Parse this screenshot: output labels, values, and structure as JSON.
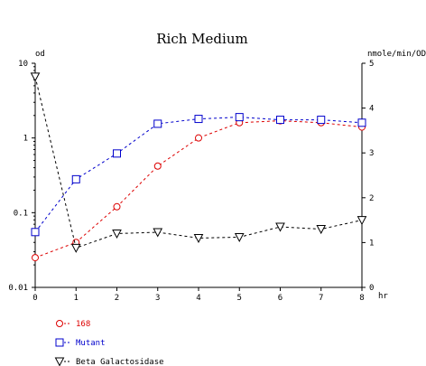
{
  "chart_data": {
    "type": "line",
    "title": "Rich Medium",
    "xlabel": "hr",
    "ylabel_left": "od",
    "ylabel_right": "nmole/min/OD",
    "x": [
      0,
      1,
      2,
      3,
      4,
      5,
      6,
      7,
      8
    ],
    "xlim": [
      0,
      8
    ],
    "x_ticks": [
      "0",
      "1",
      "2",
      "3",
      "4",
      "5",
      "6",
      "7",
      "8"
    ],
    "y_left_scale": "log",
    "y_left_lim": [
      0.01,
      10
    ],
    "y_left_ticks": [
      {
        "value": 10,
        "label": "10"
      },
      {
        "value": 1,
        "label": "1"
      },
      {
        "value": 0.1,
        "label": "0.1"
      },
      {
        "value": 0.01,
        "label": "0.01"
      }
    ],
    "y_right_lim": [
      0,
      5
    ],
    "y_right_ticks": [
      {
        "value": 5,
        "label": "5"
      },
      {
        "value": 4,
        "label": "4"
      },
      {
        "value": 3,
        "label": "3"
      },
      {
        "value": 2,
        "label": "2"
      },
      {
        "value": 1,
        "label": "1"
      },
      {
        "value": 0,
        "label": "0"
      }
    ],
    "grid": false,
    "legend_position": "bottom-left",
    "series": [
      {
        "name": "168",
        "axis": "left",
        "color": "#dd0000",
        "marker": "circle",
        "values": [
          0.025,
          0.04,
          0.12,
          0.42,
          1.0,
          1.6,
          1.7,
          1.6,
          1.4
        ]
      },
      {
        "name": "Mutant",
        "axis": "left",
        "color": "#0000cc",
        "marker": "square",
        "values": [
          0.055,
          0.28,
          0.62,
          1.55,
          1.8,
          1.9,
          1.75,
          1.75,
          1.6
        ]
      },
      {
        "name": "Beta Galactosidase",
        "axis": "right",
        "color": "#000000",
        "marker": "triangle-down",
        "values": [
          4.7,
          0.88,
          1.2,
          1.23,
          1.1,
          1.12,
          1.35,
          1.3,
          1.5
        ]
      }
    ]
  }
}
